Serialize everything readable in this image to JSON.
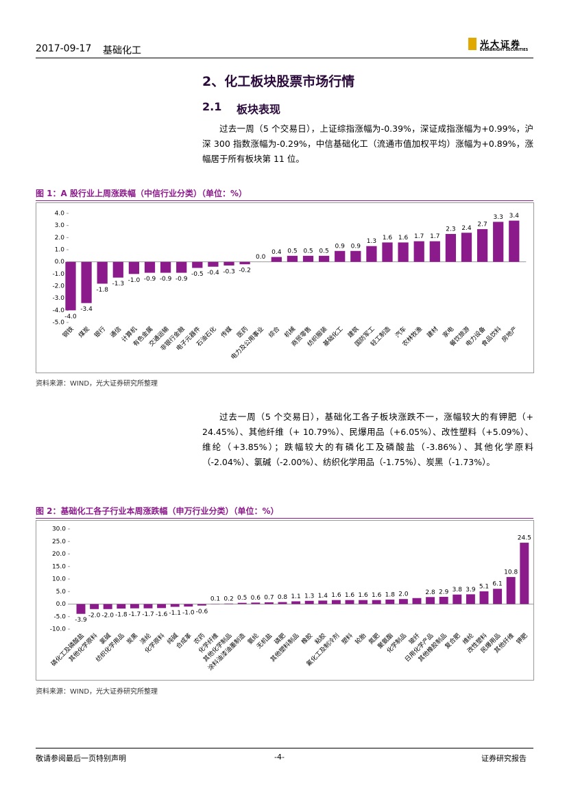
{
  "header": {
    "date": "2017-09-17",
    "title": "基础化工"
  },
  "logo": {
    "name": "光大证券",
    "sub": "EVERBRIGHT SECURITIES"
  },
  "section": {
    "title": "2、化工板块股票市场行情"
  },
  "subsection": {
    "number": "2.1",
    "title": "板块表现"
  },
  "paragraphs": [
    "过去一周（5 个交易日），上证综指涨幅为-0.39%，深证成指涨幅为+0.99%，沪深 300 指数涨幅为-0.29%，中信基础化工（流通市值加权平均）涨幅为+0.89%，涨幅居于所有板块第 11 位。",
    "过去一周（5 个交易日），基础化工各子板块涨跌不一，涨幅较大的有钾肥（+ 24.45%）、其他纤维（+ 10.79%）、民爆用品（+6.05%）、改性塑料（+5.09%）、维纶（+3.85%）；跌幅较大的有磷化工及磷酸盐（-3.86%）、其他化学原料（-2.04%）、氯碱（-2.00%）、纺织化学用品（-1.75%）、炭黑（-1.73%）。"
  ],
  "chart_data": [
    {
      "type": "bar",
      "title": "图 1：A 股行业上周涨跌幅（中信行业分类）（单位：%）",
      "source": "资料来源：WIND，光大证券研究所整理",
      "color": "#8b1a8b",
      "categories": [
        "钢铁",
        "煤炭",
        "银行",
        "通信",
        "计算机",
        "有色金属",
        "交通运输",
        "非银行金融",
        "电子元器件",
        "石油石化",
        "传媒",
        "医药",
        "电力及公用事业",
        "综合",
        "机械",
        "商贸零售",
        "纺织服装",
        "基础化工",
        "建筑",
        "国防军工",
        "轻工制造",
        "汽车",
        "农林牧渔",
        "建材",
        "家电",
        "餐饮旅游",
        "电力设备",
        "食品饮料",
        "房地产"
      ],
      "values": [
        -4.0,
        -3.4,
        -1.8,
        -1.3,
        -1.0,
        -0.9,
        -0.9,
        -0.9,
        -0.5,
        -0.4,
        -0.3,
        -0.2,
        0.0,
        0.4,
        0.5,
        0.5,
        0.5,
        0.9,
        0.9,
        1.3,
        1.6,
        1.6,
        1.7,
        1.7,
        2.3,
        2.4,
        2.7,
        3.3,
        3.4
      ],
      "value_labels": [
        "-4.0",
        "-3.4",
        "-1.8",
        "-1.3",
        "-1.0",
        "-0.9",
        "-0.9",
        "-0.9",
        "-0.5",
        "-0.4",
        "-0.3",
        "-0.2",
        "0.0",
        "0.4",
        "0.5",
        "0.5",
        "0.5",
        "0.9",
        "0.9",
        "1.3",
        "1.6",
        "1.6",
        "1.7",
        "1.7",
        "2.3",
        "2.4",
        "2.7",
        "3.3",
        "3.4"
      ],
      "ylim": [
        -5,
        4
      ],
      "yticks": [
        {
          "value": 4,
          "label": "4.0"
        },
        {
          "value": 3,
          "label": "3.0"
        },
        {
          "value": 2,
          "label": "2.0"
        },
        {
          "value": 1,
          "label": "1.0"
        },
        {
          "value": 0,
          "label": "0.0"
        },
        {
          "value": -1,
          "label": "-1.0"
        },
        {
          "value": -2,
          "label": "-2.0"
        },
        {
          "value": -3,
          "label": "-3.0"
        },
        {
          "value": -4,
          "label": "-4.0"
        },
        {
          "value": -5,
          "label": "-5.0"
        }
      ]
    },
    {
      "type": "bar",
      "title": "图 2：基础化工各子行业本周涨跌幅（申万行业分类）（单位：%）",
      "source": "资料来源：WIND，光大证券研究所整理",
      "color": "#8b1a8b",
      "categories": [
        "磷化工及磷酸盐",
        "其他化学原料",
        "氯碱",
        "纺织化学用品",
        "炭黑",
        "涤纶",
        "化学原料",
        "纯碱",
        "合成革",
        "农药",
        "化学纤维",
        "其他化学制品",
        "涂料油漆油墨制造",
        "氨纶",
        "无机盐",
        "磷肥",
        "其他塑料制品",
        "橡胶",
        "粘胶",
        "氟化工及制冷剂",
        "塑料",
        "轮胎",
        "氮肥",
        "聚氨酯",
        "化学制品",
        "玻纤",
        "日用化学产品",
        "其他橡胶制品",
        "复合肥",
        "维纶",
        "改性塑料",
        "民爆用品",
        "其他纤维",
        "钾肥"
      ],
      "values": [
        -3.9,
        -2.0,
        -2.0,
        -1.8,
        -1.7,
        -1.7,
        -1.6,
        -1.1,
        -1.0,
        -0.6,
        0.1,
        0.2,
        0.5,
        0.6,
        0.7,
        0.8,
        1.1,
        1.3,
        1.4,
        1.6,
        1.6,
        1.6,
        1.6,
        1.8,
        2.0,
        2.4,
        2.8,
        2.9,
        3.8,
        3.9,
        5.1,
        6.1,
        10.8,
        24.5
      ],
      "value_labels": [
        "-3.9",
        "-2.0",
        "-2.0",
        "-1.8",
        "-1.7",
        "-1.7",
        "-1.6",
        "-1.1",
        "-1.0",
        "-0.6",
        "0.1",
        "0.2",
        "0.5",
        "0.6",
        "0.7",
        "0.8",
        "1.1",
        "1.3",
        "1.4",
        "1.6",
        "1.6",
        "1.6",
        "1.6",
        "1.8",
        "2.0",
        null,
        "2.8",
        "2.9",
        "3.8",
        "3.9",
        "5.1",
        "6.1",
        "10.8",
        "24.5"
      ],
      "ylim": [
        -10,
        30
      ],
      "yticks": [
        {
          "value": 30,
          "label": "30.0"
        },
        {
          "value": 25,
          "label": "25.0"
        },
        {
          "value": 20,
          "label": "20.0"
        },
        {
          "value": 15,
          "label": "15.0"
        },
        {
          "value": 10,
          "label": "10.0"
        },
        {
          "value": 5,
          "label": "5.0"
        },
        {
          "value": 0,
          "label": "0.0"
        },
        {
          "value": -5,
          "label": "-5.0"
        },
        {
          "value": -10,
          "label": "-10.0"
        }
      ]
    }
  ],
  "footer": {
    "left": "敬请参阅最后一页特别声明",
    "center": "-4-",
    "right": "证券研究报告"
  }
}
